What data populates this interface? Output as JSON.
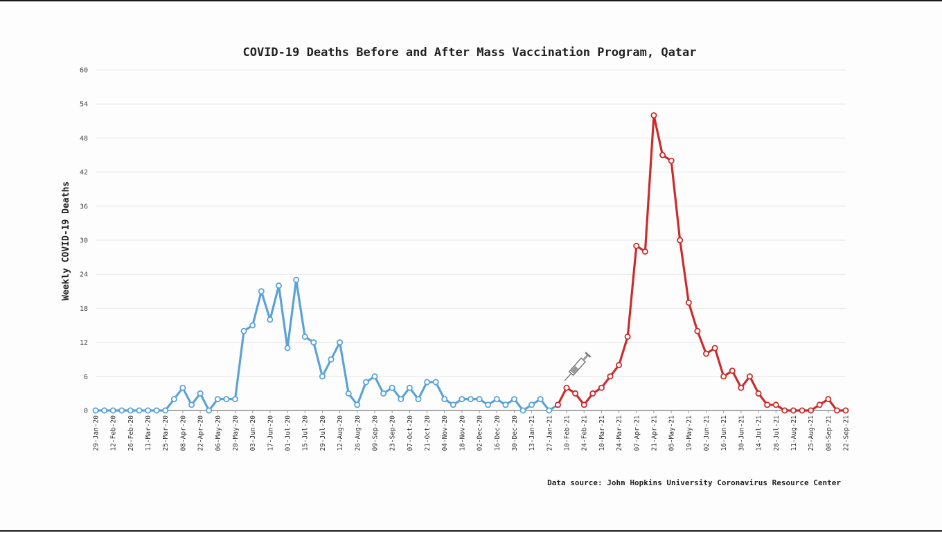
{
  "chart_data": {
    "type": "line",
    "title": "COVID-19 Deaths Before and After Mass Vaccination Program, Qatar",
    "ylabel": "Weekly COVID-19 Deaths",
    "xlabel": "",
    "source": "Data source: John Hopkins University Coronavirus Resource Center",
    "ylim": [
      0,
      60
    ],
    "yticks": [
      0,
      6,
      12,
      18,
      24,
      30,
      36,
      42,
      48,
      54,
      60
    ],
    "grid": true,
    "x_tick_labels": [
      "29-Jan-20",
      "12-Feb-20",
      "26-Feb-20",
      "11-Mar-20",
      "25-Mar-20",
      "08-Apr-20",
      "22-Apr-20",
      "06-May-20",
      "20-May-20",
      "03-Jun-20",
      "17-Jun-20",
      "01-Jul-20",
      "15-Jul-20",
      "29-Jul-20",
      "12-Aug-20",
      "26-Aug-20",
      "09-Sep-20",
      "23-Sep-20",
      "07-Oct-20",
      "21-Oct-20",
      "04-Nov-20",
      "18-Nov-20",
      "02-Dec-20",
      "16-Dec-20",
      "30-Dec-20",
      "13-Jan-21",
      "27-Jan-21",
      "10-Feb-21",
      "24-Feb-21",
      "10-Mar-21",
      "24-Mar-21",
      "07-Apr-21",
      "21-Apr-21",
      "05-May-21",
      "19-May-21",
      "02-Jun-21",
      "16-Jun-21",
      "30-Jun-21",
      "14-Jul-21",
      "28-Jul-21",
      "11-Aug-21",
      "25-Aug-21",
      "08-Sep-21",
      "22-Sep-21"
    ],
    "series": [
      {
        "color": "#5ba3d6",
        "x": [
          "29-Jan-20",
          "05-Feb-20",
          "12-Feb-20",
          "19-Feb-20",
          "26-Feb-20",
          "04-Mar-20",
          "11-Mar-20",
          "18-Mar-20",
          "25-Mar-20",
          "01-Apr-20",
          "08-Apr-20",
          "15-Apr-20",
          "22-Apr-20",
          "29-Apr-20",
          "06-May-20",
          "13-May-20",
          "20-May-20",
          "27-May-20",
          "03-Jun-20",
          "10-Jun-20",
          "17-Jun-20",
          "24-Jun-20",
          "01-Jul-20",
          "08-Jul-20",
          "15-Jul-20",
          "22-Jul-20",
          "29-Jul-20",
          "05-Aug-20",
          "12-Aug-20",
          "19-Aug-20",
          "26-Aug-20",
          "02-Sep-20",
          "09-Sep-20",
          "16-Sep-20",
          "23-Sep-20",
          "30-Sep-20",
          "07-Oct-20",
          "14-Oct-20",
          "21-Oct-20",
          "28-Oct-20",
          "04-Nov-20",
          "11-Nov-20",
          "18-Nov-20",
          "25-Nov-20",
          "02-Dec-20",
          "09-Dec-20",
          "16-Dec-20",
          "23-Dec-20",
          "30-Dec-20",
          "06-Jan-21",
          "13-Jan-21",
          "20-Jan-21",
          "27-Jan-21",
          "03-Feb-21"
        ],
        "values": [
          0,
          0,
          0,
          0,
          0,
          0,
          0,
          0,
          0,
          2,
          4,
          1,
          3,
          0,
          2,
          2,
          2,
          14,
          15,
          21,
          16,
          22,
          11,
          23,
          13,
          12,
          6,
          9,
          12,
          3,
          1,
          5,
          6,
          3,
          4,
          2,
          4,
          2,
          5,
          5,
          2,
          1,
          2,
          2,
          2,
          1,
          2,
          1,
          2,
          0,
          1,
          2,
          0,
          1
        ]
      },
      {
        "color": "#cc2b2b",
        "x": [
          "03-Feb-21",
          "10-Feb-21",
          "17-Feb-21",
          "24-Feb-21",
          "03-Mar-21",
          "10-Mar-21",
          "17-Mar-21",
          "24-Mar-21",
          "31-Mar-21",
          "07-Apr-21",
          "14-Apr-21",
          "21-Apr-21",
          "28-Apr-21",
          "05-May-21",
          "12-May-21",
          "19-May-21",
          "26-May-21",
          "02-Jun-21",
          "09-Jun-21",
          "16-Jun-21",
          "23-Jun-21",
          "30-Jun-21",
          "07-Jul-21",
          "14-Jul-21",
          "21-Jul-21",
          "28-Jul-21",
          "04-Aug-21",
          "11-Aug-21",
          "18-Aug-21",
          "25-Aug-21",
          "01-Sep-21",
          "08-Sep-21",
          "15-Sep-21",
          "22-Sep-21"
        ],
        "values": [
          1,
          4,
          3,
          1,
          3,
          4,
          6,
          8,
          13,
          29,
          28,
          52,
          45,
          44,
          30,
          19,
          14,
          10,
          11,
          6,
          7,
          4,
          6,
          3,
          1,
          1,
          0,
          0,
          0,
          0,
          1,
          2,
          0,
          0
        ]
      }
    ],
    "annotation": "syringe-icon"
  }
}
